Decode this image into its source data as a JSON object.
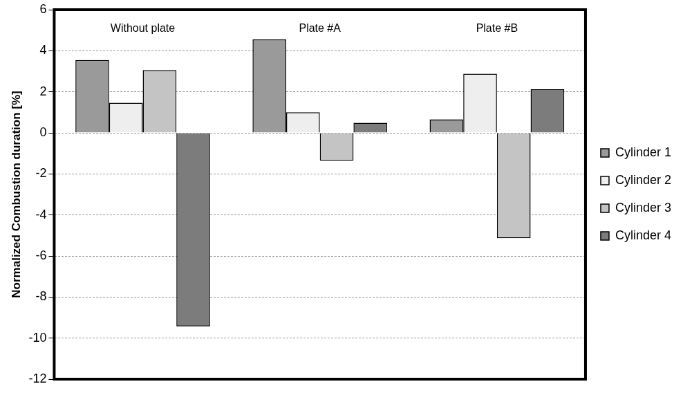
{
  "chart_data": {
    "type": "bar",
    "ylabel": "Normalized Combustion duration [%]",
    "categories": [
      "Without plate",
      "Plate #A",
      "Plate #B"
    ],
    "series": [
      {
        "name": "Cylinder 1",
        "color": "#9a9a9a",
        "values": [
          3.55,
          4.55,
          0.66
        ]
      },
      {
        "name": "Cylinder 2",
        "color": "#eeeeee",
        "values": [
          1.47,
          1.0,
          2.88
        ]
      },
      {
        "name": "Cylinder 3",
        "color": "#c4c4c4",
        "values": [
          3.06,
          -1.36,
          -5.13
        ]
      },
      {
        "name": "Cylinder 4",
        "color": "#7c7c7c",
        "values": [
          -9.43,
          0.49,
          2.12
        ]
      }
    ],
    "ylim": [
      -12,
      6
    ],
    "yticks": [
      -12,
      -10,
      -8,
      -6,
      -4,
      -2,
      0,
      2,
      4,
      6
    ],
    "grid": "y",
    "legend": "right"
  }
}
